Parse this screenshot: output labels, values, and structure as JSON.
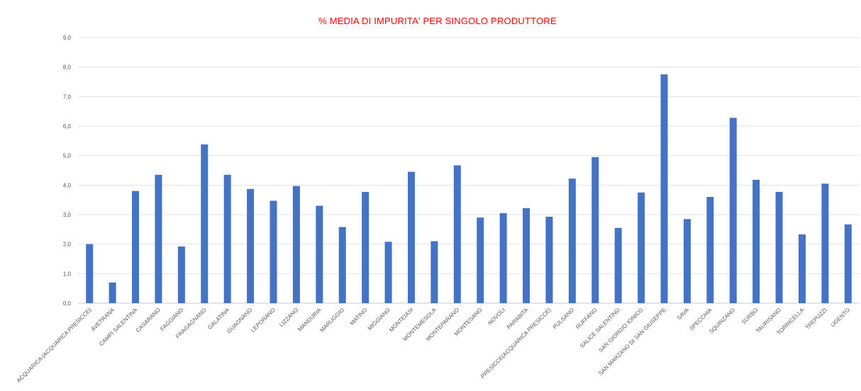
{
  "chart_data": {
    "type": "bar",
    "title": "% MEDIA DI IMPURITA' PER SINGOLO PRODUTTORE",
    "xlabel": "",
    "ylabel": "",
    "ylim": [
      0,
      9
    ],
    "yticks": [
      "0,0",
      "1,0",
      "2,0",
      "3,0",
      "4,0",
      "5,0",
      "6,0",
      "7,0",
      "8,0",
      "9,0"
    ],
    "grid": true,
    "legend": "none",
    "color": "#4472c4",
    "categories": [
      "ACQUARICA (ACQUARICA PRESICCE)",
      "AVETRANA",
      "CAMPI SALENTINA",
      "CASARANO",
      "FAGGIANO",
      "FRAGAGNANO",
      "GALATINA",
      "GUAGNANO",
      "LEPORANO",
      "LIZZANO",
      "MANDURIA",
      "MARUGGIO",
      "MATINO",
      "MIGGIANO",
      "MONTEIASI",
      "MONTEMESOLA",
      "MONTEPARANO",
      "MONTESANO",
      "NOVOLI",
      "PARABITA",
      "PRESICCE(ACQUARICA PRESICCE)",
      "PULSANO",
      "RUFFANO",
      "SALICE SALENTINO",
      "SAN GIORGIO IONICO",
      "SAN MARZANO DI SAN GIUSEPPE",
      "SAVA",
      "SPECCHIA",
      "SQUINZANO",
      "SURBO",
      "TAURISANO",
      "TORRICELLA",
      "TREPUZZI",
      "UGENTO"
    ],
    "values": [
      2.0,
      0.7,
      3.8,
      4.35,
      1.92,
      5.38,
      4.35,
      3.87,
      3.47,
      3.97,
      3.3,
      2.58,
      3.77,
      2.08,
      4.45,
      2.1,
      4.67,
      2.9,
      3.05,
      3.22,
      2.93,
      4.22,
      4.95,
      2.55,
      3.75,
      7.75,
      2.85,
      3.6,
      6.28,
      4.18,
      3.77,
      2.33,
      4.05,
      2.67
    ]
  }
}
